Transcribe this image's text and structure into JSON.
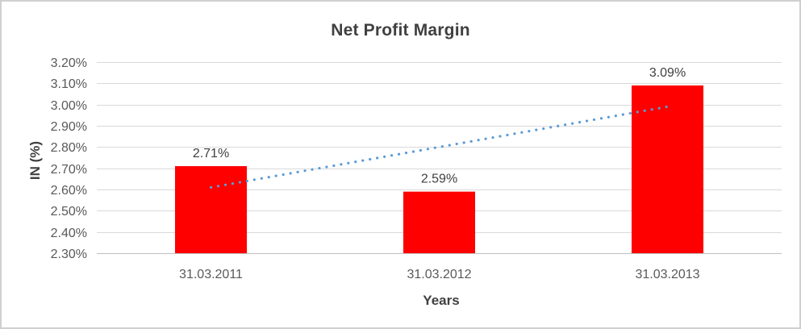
{
  "chart_data": {
    "type": "bar",
    "title": "Net Profit Margin",
    "xlabel": "Years",
    "ylabel": "IN (%)",
    "categories": [
      "31.03.2011",
      "31.03.2012",
      "31.03.2013"
    ],
    "values": [
      2.71,
      2.59,
      3.09
    ],
    "data_labels": [
      "2.71%",
      "2.59%",
      "3.09%"
    ],
    "unit": "percent",
    "ylim": [
      2.3,
      3.2
    ],
    "ytick_step": 0.1,
    "ytick_labels": [
      "2.30%",
      "2.40%",
      "2.50%",
      "2.60%",
      "2.70%",
      "2.80%",
      "2.90%",
      "3.00%",
      "3.10%",
      "3.20%"
    ],
    "grid": true,
    "legend": "none",
    "bar_color": "#FF0000",
    "trendline": {
      "type": "linear",
      "style": "dotted",
      "color": "#5B9BD5",
      "start_value": 2.61,
      "end_value": 2.99
    },
    "colors": {
      "title_text": "#404040",
      "axis_text": "#595959",
      "data_label_text": "#404040",
      "gridline": "#D9D9D9",
      "axis_line": "#C0C0C0",
      "background": "#FFFFFF",
      "frame_border": "#CFCFCF"
    }
  }
}
